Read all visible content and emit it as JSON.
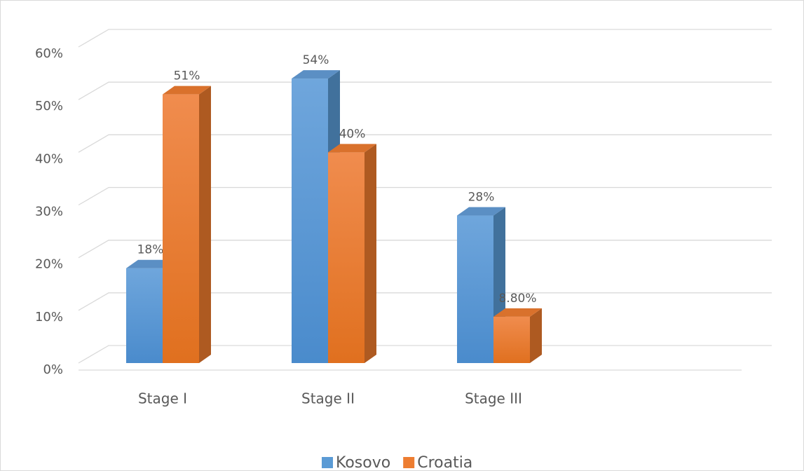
{
  "chart_data": {
    "type": "bar3d",
    "categories": [
      "Stage I",
      "Stage II",
      "Stage III"
    ],
    "series": [
      {
        "name": "Kosovo",
        "color": "#5b9bd5",
        "values": [
          18,
          54,
          28
        ],
        "value_labels": [
          "18%",
          "54%",
          "28%"
        ]
      },
      {
        "name": "Croatia",
        "color": "#ed7d31",
        "values": [
          51,
          40,
          8.8
        ],
        "value_labels": [
          "51%",
          "40%",
          "8.80%"
        ]
      }
    ],
    "ylim": [
      0,
      60
    ],
    "yticks": [
      {
        "value": 0,
        "label": "0%"
      },
      {
        "value": 10,
        "label": "10%"
      },
      {
        "value": 20,
        "label": "20%"
      },
      {
        "value": 30,
        "label": "30%"
      },
      {
        "value": 40,
        "label": "40%"
      },
      {
        "value": 50,
        "label": "50%"
      },
      {
        "value": 60,
        "label": "60%"
      }
    ],
    "grid": true,
    "legend": "bottom"
  }
}
